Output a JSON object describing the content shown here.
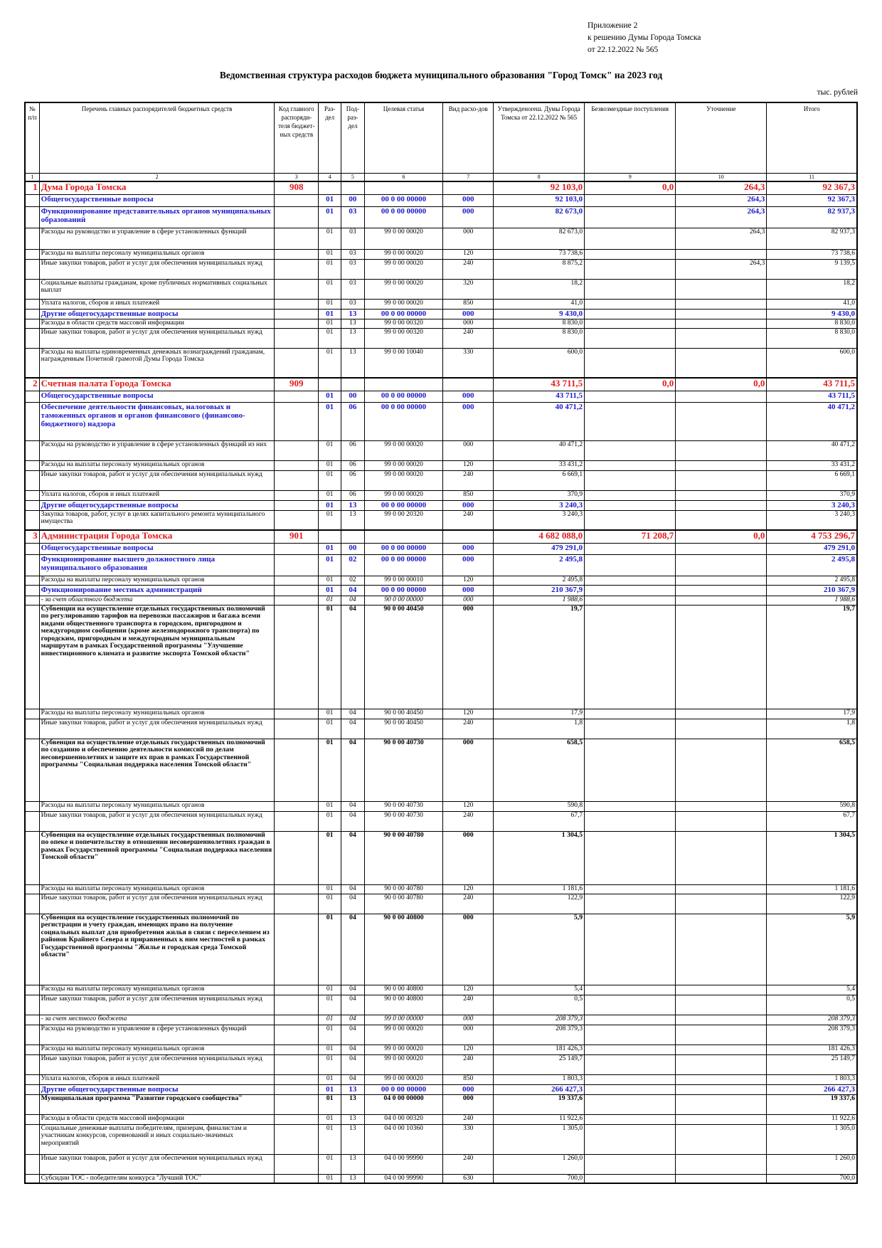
{
  "header": {
    "note_lines": [
      "Приложение 2",
      "к решению Думы Города Томска",
      "от 22.12.2022 № 565"
    ],
    "title": "Ведомственная структура расходов бюджета муниципального образования \"Город Томск\" на 2023 год",
    "units": "тыс. рублей"
  },
  "table": {
    "headers": [
      "№ п/п",
      "Перечень главных распорядителей бюджетных средств",
      "Код главного распоряди-теля бюджет-ных средств",
      "Раз-дел",
      "Под-раз-дел",
      "Целевая статья",
      "Вид расхо-дов",
      "Утвержденоreш. Думы Города Томска от 22.12.2022 № 565",
      "Безвозмездные поступления",
      "Уточнение",
      "Итого"
    ],
    "column_numbers": [
      "1",
      "2",
      "3",
      "4",
      "5",
      "6",
      "7",
      "8",
      "9",
      "10",
      "11"
    ],
    "rows": [
      {
        "k": "org",
        "top": true,
        "h": 18,
        "c": [
          "1",
          "Дума Города Томска",
          "908",
          "",
          "",
          "",
          "",
          "92 103,0",
          "0,0",
          "264,3",
          "92 367,3"
        ]
      },
      {
        "k": "sec",
        "h": 17,
        "c": [
          "",
          "Общегосударственные вопросы",
          "",
          "01",
          "00",
          "00 0 00 00000",
          "000",
          "92 103,0",
          "",
          "264,3",
          "92 367,3"
        ]
      },
      {
        "k": "sec",
        "h": 30,
        "c": [
          "",
          "Функционирование представительных органов муниципальных образований",
          "",
          "01",
          "03",
          "00 0 00 00000",
          "000",
          "82 673,0",
          "",
          "264,3",
          "82 937,3"
        ]
      },
      {
        "k": "n",
        "h": 30,
        "c": [
          "",
          "Расходы на руководство и управление в сфере установленных функций",
          "",
          "01",
          "03",
          "99 0 00 00020",
          "000",
          "82 673,0",
          "",
          "264,3",
          "82 937,3"
        ]
      },
      {
        "k": "n",
        "h": 14,
        "c": [
          "",
          "Расходы на выплаты персоналу муниципальных органов",
          "",
          "01",
          "03",
          "99 0 00 00020",
          "120",
          "73 738,6",
          "",
          "",
          "73 738,6"
        ]
      },
      {
        "k": "n",
        "h": 28,
        "c": [
          "",
          "Иные закупки товаров, работ и услуг для обеспечения муниципальных нужд",
          "",
          "01",
          "03",
          "99 0 00 00020",
          "240",
          "8 875,2",
          "",
          "264,3",
          "9 139,5"
        ]
      },
      {
        "k": "n",
        "h": 28,
        "c": [
          "",
          "Социальные выплаты гражданам, кроме публичных нормативных социальных выплат",
          "",
          "01",
          "03",
          "99 0 00 00020",
          "320",
          "18,2",
          "",
          "",
          "18,2"
        ]
      },
      {
        "k": "n",
        "h": 14,
        "c": [
          "",
          "Уплата налогов, сборов и иных платежей",
          "",
          "01",
          "03",
          "99 0 00 00020",
          "850",
          "41,0",
          "",
          "",
          "41,0"
        ]
      },
      {
        "k": "sec",
        "h": 14,
        "c": [
          "",
          "Другие общегосударственные вопросы",
          "",
          "01",
          "13",
          "00 0 00 00000",
          "000",
          "9 430,0",
          "",
          "",
          "9 430,0"
        ]
      },
      {
        "k": "n",
        "h": 13,
        "c": [
          "",
          "Расходы в области средств массовой информации",
          "",
          "01",
          "13",
          "99 0 00 00320",
          "000",
          "8 830,0",
          "",
          "",
          "8 830,0"
        ]
      },
      {
        "k": "n",
        "h": 28,
        "c": [
          "",
          "Иные закупки товаров, работ и услуг для обеспечения муниципальных нужд",
          "",
          "01",
          "13",
          "99 0 00 00320",
          "240",
          "8 830,0",
          "",
          "",
          "8 830,0"
        ]
      },
      {
        "k": "n",
        "h": 42,
        "c": [
          "",
          "Расходы на выплаты единовременных денежных вознаграждений гражданам, награжденным Почетной грамотой Думы Города Томска",
          "",
          "01",
          "13",
          "99 0 00 10040",
          "330",
          "600,0",
          "",
          "",
          "600,0"
        ]
      },
      {
        "k": "org",
        "top": true,
        "h": 18,
        "c": [
          "2",
          "Счетная палата Города Томска",
          "909",
          "",
          "",
          "",
          "",
          "43 711,5",
          "0,0",
          "0,0",
          "43 711,5"
        ]
      },
      {
        "k": "sec",
        "h": 16,
        "c": [
          "",
          "Общегосударственные вопросы",
          "",
          "01",
          "00",
          "00 0 00 00000",
          "000",
          "43 711,5",
          "",
          "",
          "43 711,5"
        ]
      },
      {
        "k": "sec",
        "h": 54,
        "c": [
          "",
          "Обеспечение деятельности финансовых, налоговых и таможенных органов и органов финансового (финансово-бюджетного) надзора",
          "",
          "01",
          "06",
          "00 0 00 00000",
          "000",
          "40 471,2",
          "",
          "",
          "40 471,2"
        ]
      },
      {
        "k": "n",
        "h": 28,
        "c": [
          "",
          "Расходы на руководство и управление в сфере установленных функций из них",
          "",
          "01",
          "06",
          "99 0 00 00020",
          "000",
          "40 471,2",
          "",
          "",
          "40 471,2"
        ]
      },
      {
        "k": "n",
        "h": 14,
        "c": [
          "",
          "Расходы на выплаты персоналу муниципальных органов",
          "",
          "01",
          "06",
          "99 0 00 00020",
          "120",
          "33 431,2",
          "",
          "",
          "33 431,2"
        ]
      },
      {
        "k": "n",
        "h": 28,
        "c": [
          "",
          "Иные закупки товаров, работ и услуг для обеспечения муниципальных нужд",
          "",
          "01",
          "06",
          "99 0 00 00020",
          "240",
          "6 669,1",
          "",
          "",
          "6 669,1"
        ]
      },
      {
        "k": "n",
        "h": 14,
        "c": [
          "",
          "Уплата налогов, сборов и иных платежей",
          "",
          "01",
          "06",
          "99 0 00 00020",
          "850",
          "370,9",
          "",
          "",
          "370,9"
        ]
      },
      {
        "k": "sec",
        "h": 14,
        "c": [
          "",
          "Другие общегосударственные вопросы",
          "",
          "01",
          "13",
          "00 0 00 00000",
          "000",
          "3 240,3",
          "",
          "",
          "3 240,3"
        ]
      },
      {
        "k": "n",
        "h": 28,
        "c": [
          "",
          "Закупка товаров, работ, услуг в целях капитального ремонта муниципального имущества",
          "",
          "01",
          "13",
          "99 0 00 20320",
          "240",
          "3 240,3",
          "",
          "",
          "3 240,3"
        ]
      },
      {
        "k": "org",
        "top": true,
        "h": 18,
        "c": [
          "3",
          "Администрация Города Томска",
          "901",
          "",
          "",
          "",
          "",
          "4 682 088,0",
          "71 208,7",
          "0,0",
          "4 753 296,7"
        ]
      },
      {
        "k": "sec",
        "h": 16,
        "c": [
          "",
          "Общегосударственные вопросы",
          "",
          "01",
          "00",
          "00 0 00 00000",
          "000",
          "479 291,0",
          "",
          "",
          "479 291,0"
        ]
      },
      {
        "k": "sec",
        "h": 30,
        "c": [
          "",
          "Функционирование высшего должностного лица муниципального образования",
          "",
          "01",
          "02",
          "00 0 00 00000",
          "000",
          "2 495,8",
          "",
          "",
          "2 495,8"
        ]
      },
      {
        "k": "n",
        "h": 13,
        "c": [
          "",
          "Расходы на выплаты персоналу муниципальных органов",
          "",
          "01",
          "02",
          "99 0 00 00010",
          "120",
          "2 495,8",
          "",
          "",
          "2 495,8"
        ]
      },
      {
        "k": "sec",
        "h": 15,
        "c": [
          "",
          "Функционирование местных администраций",
          "",
          "01",
          "04",
          "00 0 00 00000",
          "000",
          "210 367,9",
          "",
          "",
          "210 367,9"
        ]
      },
      {
        "k": "ital",
        "h": 13,
        "c": [
          "",
          "- за счет областного бюджета",
          "",
          "01",
          "04",
          "90 0 00 00000",
          "000",
          "1 988,6",
          "",
          "",
          "1 988,6"
        ]
      },
      {
        "k": "bold",
        "h": 146,
        "c": [
          "",
          "Субвенция на осуществление отдельных государственных полномочий по регулированию тарифов на перевозки пассажиров и багажа всеми видами общественного транспорта в городском, пригородном и междугородном сообщении (кроме железнодорожного транспорта) по городским, пригородным и междугородным муниципальным маршрутам в рамках Государственной программы \"Улучшение инвестиционного климата и развитие экспорта Томской области\"",
          "",
          "01",
          "04",
          "90 0 00 40450",
          "000",
          "19,7",
          "",
          "",
          "19,7"
        ]
      },
      {
        "k": "n",
        "h": 14,
        "c": [
          "",
          "Расходы на выплаты персоналу муниципальных органов",
          "",
          "01",
          "04",
          "90 0 00 40450",
          "120",
          "17,9",
          "",
          "",
          "17,9"
        ]
      },
      {
        "k": "n",
        "h": 28,
        "c": [
          "",
          "Иные закупки товаров, работ и услуг для обеспечения муниципальных нужд",
          "",
          "01",
          "04",
          "90 0 00 40450",
          "240",
          "1,8",
          "",
          "",
          "1,8"
        ]
      },
      {
        "k": "bold",
        "h": 88,
        "c": [
          "",
          "Субвенция на осуществление отдельных государственных полномочий по созданию и обеспечению деятельности комиссий по делам несовершеннолетних и защите их прав в рамках Государственной программы \"Социальная поддержка населения Томской области\"",
          "",
          "01",
          "04",
          "90 0 00 40730",
          "000",
          "658,5",
          "",
          "",
          "658,5"
        ]
      },
      {
        "k": "n",
        "h": 14,
        "c": [
          "",
          "Расходы на выплаты персоналу муниципальных органов",
          "",
          "01",
          "04",
          "90 0 00 40730",
          "120",
          "590,8",
          "",
          "",
          "590,8"
        ]
      },
      {
        "k": "n",
        "h": 28,
        "c": [
          "",
          "Иные закупки товаров, работ и услуг для обеспечения муниципальных нужд",
          "",
          "01",
          "04",
          "90 0 00 40730",
          "240",
          "67,7",
          "",
          "",
          "67,7"
        ]
      },
      {
        "k": "bold",
        "h": 75,
        "c": [
          "",
          "Субвенция на осуществление отдельных государственных полномочий по опеке и попечительству в отношении несовершеннолетних граждан в рамках Государственной программы \"Социальная поддержка населения Томской области\"",
          "",
          "01",
          "04",
          "90 0 00 40780",
          "000",
          "1 304,5",
          "",
          "",
          "1 304,5"
        ]
      },
      {
        "k": "n",
        "h": 13,
        "c": [
          "",
          "Расходы на выплаты персоналу муниципальных органов",
          "",
          "01",
          "04",
          "90 0 00 40780",
          "120",
          "1 181,6",
          "",
          "",
          "1 181,6"
        ]
      },
      {
        "k": "n",
        "h": 28,
        "c": [
          "",
          "Иные закупки товаров, работ и услуг для обеспечения муниципальных нужд",
          "",
          "01",
          "04",
          "90 0 00 40780",
          "240",
          "122,9",
          "",
          "",
          "122,9"
        ]
      },
      {
        "k": "bold",
        "h": 100,
        "c": [
          "",
          "Субвенция на осуществление государственных полномочий по регистрации и учету граждан, имеющих право на получение социальных выплат для приобретения жилья в связи с переселением из районов Крайнего Севера и приравненных к ним местностей в рамках Государственной программы \"Жилье и городская среда Томской области\"",
          "",
          "01",
          "04",
          "90 0 00 40800",
          "000",
          "5,9",
          "",
          "",
          "5,9"
        ]
      },
      {
        "k": "n",
        "h": 14,
        "c": [
          "",
          "Расходы на выплаты персоналу муниципальных органов",
          "",
          "01",
          "04",
          "90 0 00 40800",
          "120",
          "5,4",
          "",
          "",
          "5,4"
        ]
      },
      {
        "k": "n",
        "h": 28,
        "c": [
          "",
          "Иные закупки товаров, работ и услуг для обеспечения муниципальных нужд",
          "",
          "01",
          "04",
          "90 0 00 40800",
          "240",
          "0,5",
          "",
          "",
          "0,5"
        ]
      },
      {
        "k": "ital",
        "h": 14,
        "c": [
          "",
          "- за счет местного бюджета",
          "",
          "01",
          "04",
          "99 0 00 00000",
          "000",
          "208 379,3",
          "",
          "",
          "208 379,3"
        ]
      },
      {
        "k": "n",
        "h": 28,
        "c": [
          "",
          "Расходы на руководство и управление в сфере установленных функций",
          "",
          "01",
          "04",
          "99 0 00 00020",
          "000",
          "208 379,3",
          "",
          "",
          "208 379,3"
        ]
      },
      {
        "k": "n",
        "h": 14,
        "c": [
          "",
          "Расходы на выплаты персоналу муниципальных органов",
          "",
          "01",
          "04",
          "99 0 00 00020",
          "120",
          "181 426,3",
          "",
          "",
          "181 426,3"
        ]
      },
      {
        "k": "n",
        "h": 28,
        "c": [
          "",
          "Иные закупки товаров, работ и услуг для обеспечения муниципальных нужд",
          "",
          "01",
          "04",
          "99 0 00 00020",
          "240",
          "25 149,7",
          "",
          "",
          "25 149,7"
        ]
      },
      {
        "k": "n",
        "h": 14,
        "c": [
          "",
          "Уплата налогов, сборов и иных платежей",
          "",
          "01",
          "04",
          "99 0 00 00020",
          "850",
          "1 803,3",
          "",
          "",
          "1 803,3"
        ]
      },
      {
        "k": "sec",
        "h": 14,
        "c": [
          "",
          "Другие общегосударственные вопросы",
          "",
          "01",
          "13",
          "00 0 00 00000",
          "000",
          "266 427,3",
          "",
          "",
          "266 427,3"
        ]
      },
      {
        "k": "bold",
        "h": 28,
        "c": [
          "",
          "Муниципальная программа \"Развитие городского сообщества\"",
          "",
          "01",
          "13",
          "04 0 00 00000",
          "000",
          "19 337,6",
          "",
          "",
          "19 337,6"
        ]
      },
      {
        "k": "n",
        "h": 14,
        "c": [
          "",
          "Расходы в области средств массовой информации",
          "",
          "01",
          "13",
          "04 0 00 00320",
          "240",
          "11 922,6",
          "",
          "",
          "11 922,6"
        ]
      },
      {
        "k": "n",
        "h": 42,
        "c": [
          "",
          "Социальные денежные выплаты победителям, призерам, финалистам и участникам конкурсов, соревнований и иных социально-значимых мероприятий",
          "",
          "01",
          "13",
          "04 0 00 10360",
          "330",
          "1 305,0",
          "",
          "",
          "1 305,0"
        ]
      },
      {
        "k": "n",
        "h": 28,
        "c": [
          "",
          "Иные закупки товаров, работ и услуг для обеспечения муниципальных нужд",
          "",
          "01",
          "13",
          "04 0 00 99990",
          "240",
          "1 260,0",
          "",
          "",
          "1 260,0"
        ]
      },
      {
        "k": "n",
        "h": 13,
        "c": [
          "",
          "Субсидии ТОС - победителям конкурса \"Лучший ТОС\"",
          "",
          "01",
          "13",
          "04 0 00 99990",
          "630",
          "700,0",
          "",
          "",
          "700,0"
        ]
      }
    ]
  }
}
